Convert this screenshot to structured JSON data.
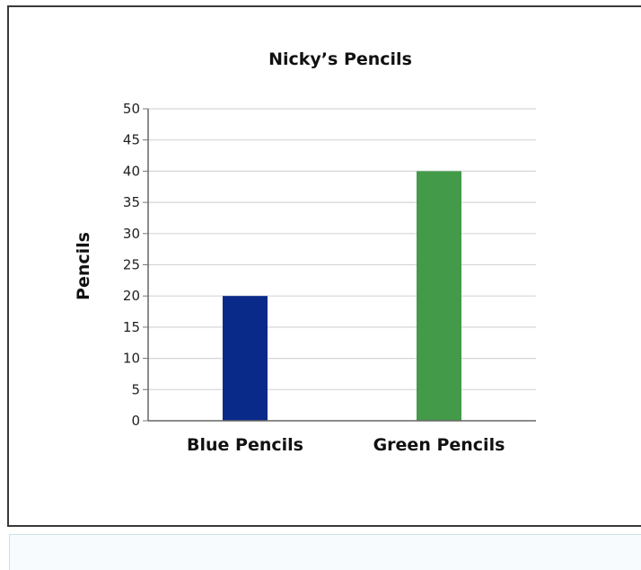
{
  "chart_data": {
    "type": "bar",
    "title": "Nicky’s Pencils",
    "xlabel": "",
    "ylabel": "Pencils",
    "categories": [
      "Blue Pencils",
      "Green Pencils"
    ],
    "values": [
      20,
      40
    ],
    "colors": [
      "#0a2a8a",
      "#439a48"
    ],
    "ylim": [
      0,
      50
    ],
    "yticks": [
      0,
      5,
      10,
      15,
      20,
      25,
      30,
      35,
      40,
      45,
      50
    ],
    "grid": true,
    "legend": "none"
  }
}
